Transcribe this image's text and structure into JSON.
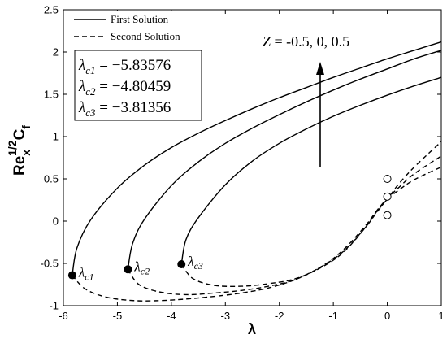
{
  "chart_data": {
    "type": "line",
    "title": "",
    "xlabel": "λ",
    "ylabel": {
      "base": "Re",
      "sub": "x",
      "sup": "1/2",
      "rest": "C",
      "rest_sub": "f"
    },
    "xlim": [
      -6,
      1
    ],
    "ylim": [
      -1,
      2.5
    ],
    "xticks": [
      -6,
      -5,
      -4,
      -3,
      -2,
      -1,
      0,
      1
    ],
    "yticks": [
      -1,
      -0.5,
      0,
      0.5,
      1,
      1.5,
      2,
      2.5
    ],
    "grid": false,
    "legend": {
      "position": "top-left",
      "entries": [
        {
          "label": "First Solution",
          "style": "solid"
        },
        {
          "label": "Second Solution",
          "style": "dashed"
        }
      ]
    },
    "critical_box": [
      {
        "sym": "λ",
        "sub": "c1",
        "text": " = −5.83576"
      },
      {
        "sym": "λ",
        "sub": "c2",
        "text": " = −4.80459"
      },
      {
        "sym": "λ",
        "sub": "c3",
        "text": " = −3.81356"
      }
    ],
    "annotation": {
      "prefix": "Z",
      "text": " = -0.5, 0, 0.5"
    },
    "critical_points": [
      {
        "sym": "λ",
        "sub": "c1",
        "x": -5.83576,
        "y": -0.64
      },
      {
        "sym": "λ",
        "sub": "c2",
        "x": -4.80459,
        "y": -0.57
      },
      {
        "sym": "λ",
        "sub": "c3",
        "x": -3.81356,
        "y": -0.51
      }
    ],
    "series": [
      {
        "style": "solid",
        "x": [
          -5.83576,
          -5.75,
          -5.5,
          -5,
          -4.5,
          -4,
          -3.5,
          -3,
          -2.5,
          -2,
          -1.5,
          -1,
          -0.5,
          0,
          0.5,
          1
        ],
        "y": [
          -0.64,
          -0.32,
          0.01,
          0.39,
          0.66,
          0.87,
          1.04,
          1.19,
          1.33,
          1.46,
          1.58,
          1.7,
          1.81,
          1.92,
          2.02,
          2.12
        ]
      },
      {
        "style": "solid",
        "x": [
          -4.80459,
          -4.72,
          -4.5,
          -4,
          -3.5,
          -3,
          -2.5,
          -2,
          -1.5,
          -1,
          -0.5,
          0,
          0.5,
          1
        ],
        "y": [
          -0.57,
          -0.27,
          0.02,
          0.42,
          0.7,
          0.92,
          1.1,
          1.26,
          1.41,
          1.55,
          1.68,
          1.8,
          1.92,
          2.02
        ]
      },
      {
        "style": "solid",
        "x": [
          -3.81356,
          -3.73,
          -3.5,
          -3,
          -2.5,
          -2,
          -1.5,
          -1,
          -0.5,
          0,
          0.5,
          1
        ],
        "y": [
          -0.51,
          -0.22,
          0.04,
          0.43,
          0.71,
          0.92,
          1.09,
          1.24,
          1.37,
          1.49,
          1.6,
          1.7
        ]
      },
      {
        "style": "dashed",
        "x": [
          -5.83576,
          -5.6,
          -5.2,
          -4.7,
          -4.2,
          -3.7,
          -3.2,
          -2.7,
          -2.2,
          -1.7,
          -1.2,
          -0.8,
          -0.4,
          -0.2,
          0,
          0.2,
          0.5,
          1
        ],
        "y": [
          -0.64,
          -0.8,
          -0.9,
          -0.94,
          -0.94,
          -0.92,
          -0.89,
          -0.85,
          -0.79,
          -0.69,
          -0.53,
          -0.35,
          -0.07,
          0.1,
          0.26,
          0.36,
          0.49,
          0.64
        ]
      },
      {
        "style": "dashed",
        "x": [
          -4.80459,
          -4.6,
          -4.2,
          -3.7,
          -3.2,
          -2.7,
          -2.2,
          -1.7,
          -1.2,
          -0.8,
          -0.4,
          -0.2,
          0,
          0.2,
          0.5,
          1
        ],
        "y": [
          -0.57,
          -0.75,
          -0.84,
          -0.87,
          -0.85,
          -0.82,
          -0.77,
          -0.69,
          -0.53,
          -0.33,
          -0.05,
          0.12,
          0.27,
          0.39,
          0.56,
          0.77
        ]
      },
      {
        "style": "dashed",
        "x": [
          -3.81356,
          -3.6,
          -3.2,
          -2.7,
          -2.2,
          -1.7,
          -1.2,
          -0.8,
          -0.4,
          -0.2,
          0,
          0.2,
          0.5,
          1
        ],
        "y": [
          -0.51,
          -0.68,
          -0.76,
          -0.77,
          -0.74,
          -0.68,
          -0.54,
          -0.36,
          -0.07,
          0.11,
          0.26,
          0.43,
          0.64,
          0.94
        ]
      }
    ],
    "open_markers": [
      {
        "x": 0,
        "y": 0.07
      },
      {
        "x": 0,
        "y": 0.29
      },
      {
        "x": 0,
        "y": 0.5
      }
    ]
  }
}
